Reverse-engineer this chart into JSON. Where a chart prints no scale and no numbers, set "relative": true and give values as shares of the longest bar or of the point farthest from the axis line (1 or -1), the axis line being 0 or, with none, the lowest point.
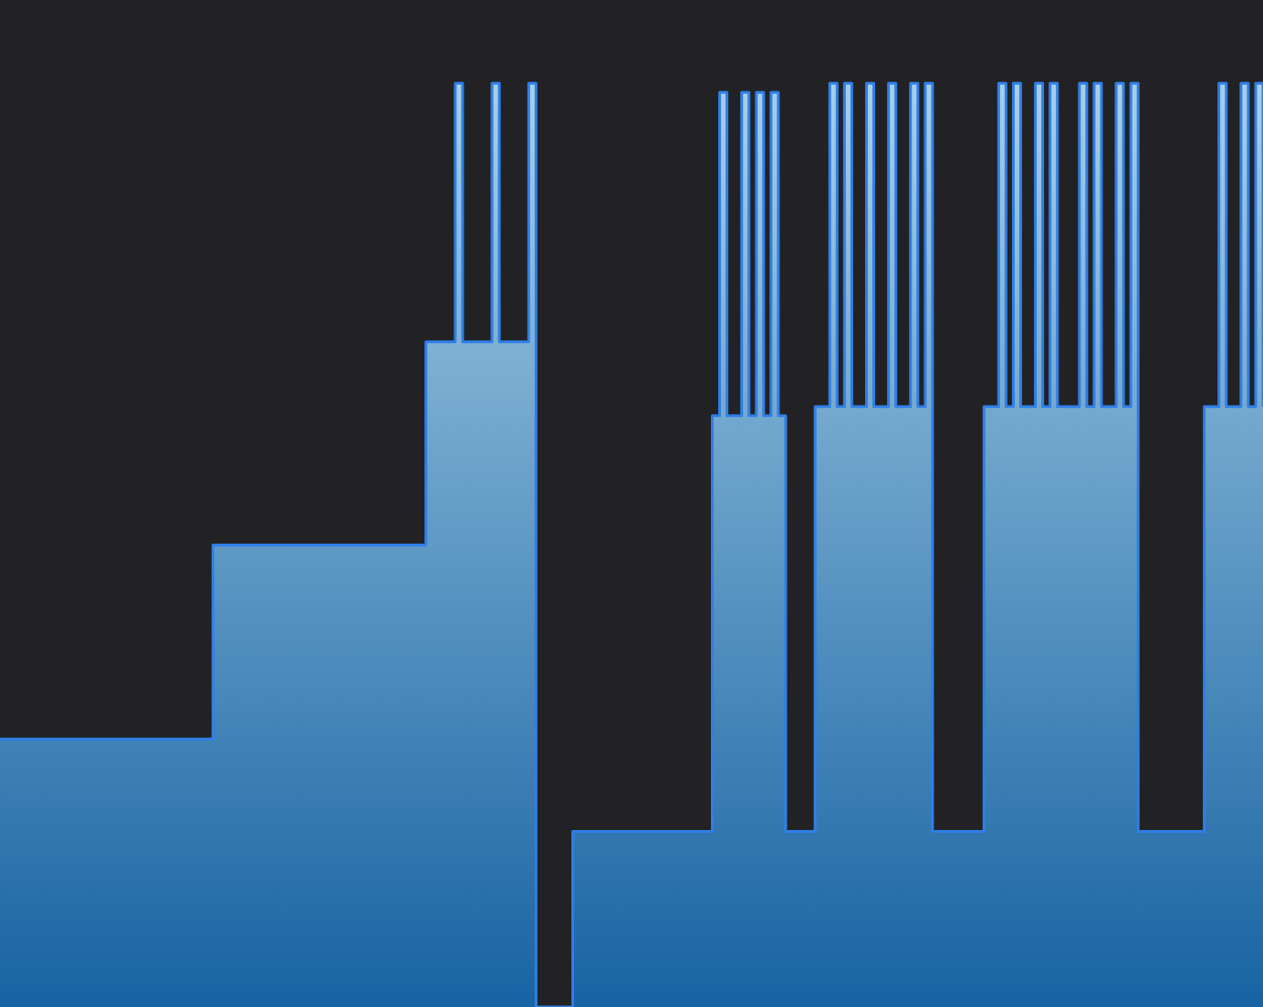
{
  "chart_data": {
    "type": "step",
    "relative": true,
    "color": "#2f7fe8",
    "categories": [
      null,
      null,
      null,
      null,
      null,
      null,
      null,
      null,
      null,
      null,
      null,
      null,
      null,
      null,
      null,
      null,
      null,
      null,
      null,
      null,
      null,
      null,
      null,
      null,
      null,
      null,
      null,
      null,
      null,
      null,
      null,
      null,
      null,
      null,
      null,
      null,
      null,
      null,
      null,
      null,
      null,
      null,
      null,
      null,
      null,
      null,
      null,
      null,
      null,
      null,
      null,
      null,
      null,
      null,
      null,
      null,
      null,
      null,
      null,
      null,
      null,
      null,
      null,
      null,
      null,
      null,
      null,
      null,
      null,
      null,
      null,
      null,
      null,
      null,
      null,
      null,
      null,
      null,
      null,
      null,
      null,
      null,
      null,
      null,
      null,
      null,
      null,
      null,
      null,
      null,
      null,
      null,
      null,
      null,
      null,
      null,
      null,
      null,
      null,
      null,
      null,
      null,
      null,
      null,
      null,
      null,
      null,
      null,
      null,
      null,
      null,
      null,
      null,
      null,
      null,
      null,
      null,
      null,
      null,
      null,
      null,
      null,
      null,
      null,
      null,
      null,
      null,
      null,
      null,
      null,
      null,
      null,
      null,
      null,
      null,
      null,
      null,
      null,
      null,
      null,
      null,
      null,
      null,
      null,
      null,
      null,
      null,
      null,
      null,
      null,
      null,
      null,
      null,
      null,
      null,
      null,
      null,
      null,
      null,
      null,
      null,
      null,
      null,
      null,
      null,
      null,
      null,
      null,
      null,
      null,
      null,
      null,
      null
    ],
    "values": [
      0.29,
      0.29,
      0.29,
      0.29,
      0.29,
      0.29,
      0.29,
      0.29,
      0.29,
      0.29,
      0.29,
      0.29,
      0.29,
      0.29,
      0.29,
      0.29,
      0.29,
      0.29,
      0.29,
      0.29,
      0.29,
      0.29,
      0.29,
      0.29,
      0.29,
      0.29,
      0.29,
      0.29,
      0.29,
      0.5,
      0.5,
      0.5,
      0.5,
      0.5,
      0.5,
      0.5,
      0.5,
      0.5,
      0.5,
      0.5,
      0.5,
      0.5,
      0.5,
      0.5,
      0.5,
      0.5,
      0.5,
      0.5,
      0.5,
      0.5,
      0.5,
      0.5,
      0.5,
      0.5,
      0.5,
      0.5,
      0.5,
      0.5,
      0.72,
      0.72,
      0.72,
      0.72,
      1,
      0.72,
      0.72,
      0.72,
      0.72,
      1,
      0.72,
      0.72,
      0.72,
      0.72,
      1,
      0,
      0,
      0,
      0,
      0,
      0.19,
      0.19,
      0.19,
      0.19,
      0.19,
      0.19,
      0.19,
      0.19,
      0.19,
      0.19,
      0.19,
      0.19,
      0.19,
      0.19,
      0.19,
      0.19,
      0.19,
      0.19,
      0.19,
      0.64,
      0.99,
      0.64,
      0.64,
      0.99,
      0.64,
      0.99,
      0.64,
      0.99,
      0.64,
      0.19,
      0.19,
      0.19,
      0.19,
      0.65,
      0.65,
      1,
      0.65,
      1,
      0.65,
      0.65,
      1,
      0.65,
      0.65,
      1,
      0.65,
      0.65,
      1,
      0.65,
      1,
      0.19,
      0.19,
      0.19,
      0.19,
      0.19,
      0.19,
      0.19,
      0.65,
      0.65,
      1,
      0.65,
      1,
      0.65,
      0.65,
      1,
      0.65,
      1,
      0.65,
      0.65,
      0.65,
      1,
      0.65,
      1,
      0.65,
      0.65,
      1,
      0.65,
      1,
      0.19,
      0.19,
      0.19,
      0.19,
      0.19,
      0.19,
      0.19,
      0.19,
      0.19,
      0.65,
      0.65,
      1,
      0.65,
      0.65,
      1,
      0.65,
      1,
      0.65
    ]
  }
}
